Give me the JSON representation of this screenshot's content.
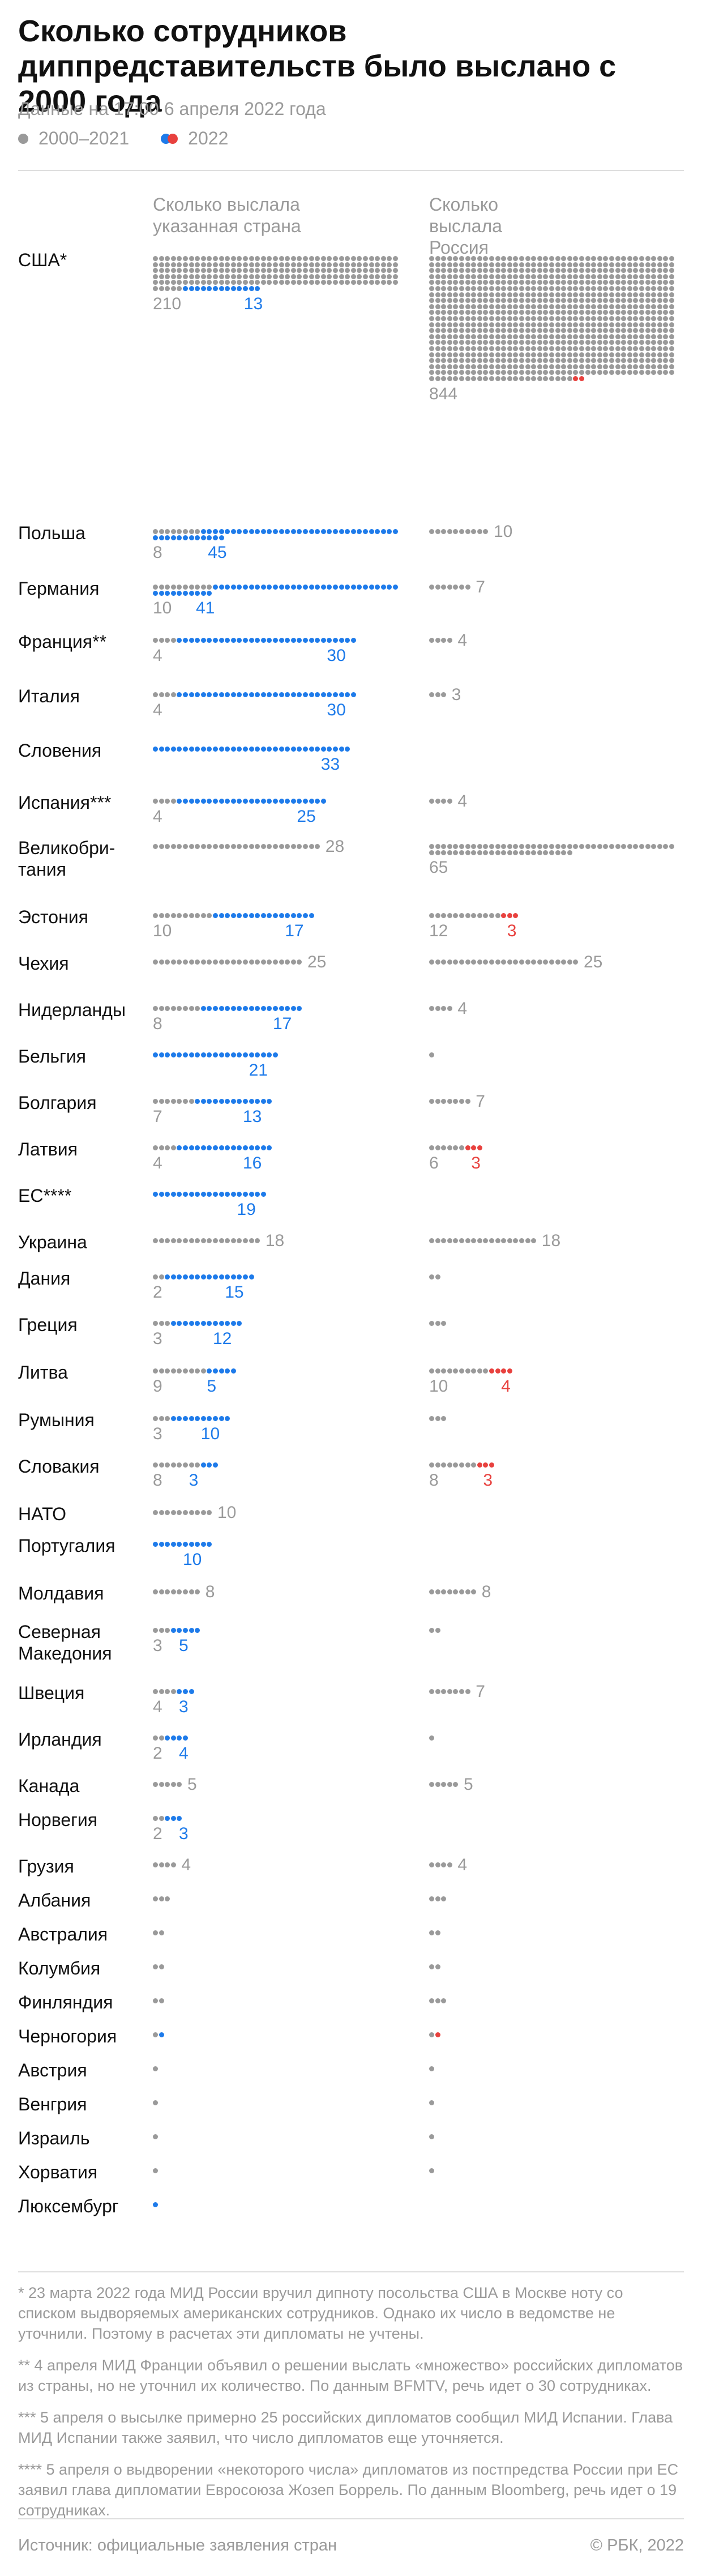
{
  "title": "Сколько сотрудников диппредставительств было выслано с 2000 года",
  "subtitle": "Данные на 17:00 6 апреля 2022 года",
  "legend": {
    "old": "2000–2021",
    "new": "2022"
  },
  "columns": {
    "left": "Сколько выслала указанная страна",
    "right": "Сколько выслала Россия"
  },
  "colors": {
    "old": "#9a9a9a",
    "new_country": "#1e7bea",
    "new_russia": "#e8413e"
  },
  "chart_data": {
    "type": "table",
    "series_meaning": {
      "old": "2000–2021",
      "new": "2022"
    },
    "rows": [
      {
        "country": "США*",
        "left_old": 210,
        "left_new": 13,
        "right_old": 844,
        "right_new": 2,
        "lbl": {
          "lo": "210",
          "ln": "13",
          "ro": "844",
          "rn": ""
        }
      },
      {
        "country": "Польша",
        "left_old": 8,
        "left_new": 45,
        "right_old": 10,
        "right_new": 0,
        "lbl": {
          "lo": "8",
          "ln": "45",
          "ro": "10",
          "rn": ""
        }
      },
      {
        "country": "Германия",
        "left_old": 10,
        "left_new": 41,
        "right_old": 7,
        "right_new": 0,
        "lbl": {
          "lo": "10",
          "ln": "41",
          "ro": "7",
          "rn": ""
        }
      },
      {
        "country": "Франция**",
        "left_old": 4,
        "left_new": 30,
        "right_old": 4,
        "right_new": 0,
        "lbl": {
          "lo": "4",
          "ln": "30",
          "ro": "4",
          "rn": ""
        }
      },
      {
        "country": "Италия",
        "left_old": 4,
        "left_new": 30,
        "right_old": 3,
        "right_new": 0,
        "lbl": {
          "lo": "4",
          "ln": "30",
          "ro": "3",
          "rn": ""
        }
      },
      {
        "country": "Словения",
        "left_old": 0,
        "left_new": 33,
        "right_old": 0,
        "right_new": 0,
        "lbl": {
          "lo": "",
          "ln": "33",
          "ro": "",
          "rn": ""
        }
      },
      {
        "country": "Испания***",
        "left_old": 4,
        "left_new": 25,
        "right_old": 4,
        "right_new": 0,
        "lbl": {
          "lo": "4",
          "ln": "25",
          "ro": "4",
          "rn": ""
        }
      },
      {
        "country": "Великобри-тания",
        "left_old": 28,
        "left_new": 0,
        "right_old": 65,
        "right_new": 0,
        "lbl": {
          "lo": "28",
          "ln": "",
          "ro": "65",
          "rn": ""
        }
      },
      {
        "country": "Эстония",
        "left_old": 10,
        "left_new": 17,
        "right_old": 12,
        "right_new": 3,
        "lbl": {
          "lo": "10",
          "ln": "17",
          "ro": "12",
          "rn": "3"
        }
      },
      {
        "country": "Чехия",
        "left_old": 25,
        "left_new": 0,
        "right_old": 25,
        "right_new": 0,
        "lbl": {
          "lo": "25",
          "ln": "",
          "ro": "25",
          "rn": ""
        }
      },
      {
        "country": "Нидерланды",
        "left_old": 8,
        "left_new": 17,
        "right_old": 4,
        "right_new": 0,
        "lbl": {
          "lo": "8",
          "ln": "17",
          "ro": "4",
          "rn": ""
        }
      },
      {
        "country": "Бельгия",
        "left_old": 0,
        "left_new": 21,
        "right_old": 1,
        "right_new": 0,
        "lbl": {
          "lo": "",
          "ln": "21",
          "ro": "",
          "rn": ""
        }
      },
      {
        "country": "Болгария",
        "left_old": 7,
        "left_new": 13,
        "right_old": 7,
        "right_new": 0,
        "lbl": {
          "lo": "7",
          "ln": "13",
          "ro": "7",
          "rn": ""
        }
      },
      {
        "country": "Латвия",
        "left_old": 4,
        "left_new": 16,
        "right_old": 6,
        "right_new": 3,
        "lbl": {
          "lo": "4",
          "ln": "16",
          "ro": "6",
          "rn": "3"
        }
      },
      {
        "country": "ЕС****",
        "left_old": 0,
        "left_new": 19,
        "right_old": 0,
        "right_new": 0,
        "lbl": {
          "lo": "",
          "ln": "19",
          "ro": "",
          "rn": ""
        }
      },
      {
        "country": "Украина",
        "left_old": 18,
        "left_new": 0,
        "right_old": 18,
        "right_new": 0,
        "lbl": {
          "lo": "18",
          "ln": "",
          "ro": "18",
          "rn": ""
        }
      },
      {
        "country": "Дания",
        "left_old": 2,
        "left_new": 15,
        "right_old": 2,
        "right_new": 0,
        "lbl": {
          "lo": "2",
          "ln": "15",
          "ro": "",
          "rn": ""
        }
      },
      {
        "country": "Греция",
        "left_old": 3,
        "left_new": 12,
        "right_old": 3,
        "right_new": 0,
        "lbl": {
          "lo": "3",
          "ln": "12",
          "ro": "",
          "rn": ""
        }
      },
      {
        "country": "Литва",
        "left_old": 9,
        "left_new": 5,
        "right_old": 10,
        "right_new": 4,
        "lbl": {
          "lo": "9",
          "ln": "5",
          "ro": "10",
          "rn": "4"
        }
      },
      {
        "country": "Румыния",
        "left_old": 3,
        "left_new": 10,
        "right_old": 3,
        "right_new": 0,
        "lbl": {
          "lo": "3",
          "ln": "10",
          "ro": "",
          "rn": ""
        }
      },
      {
        "country": "Словакия",
        "left_old": 8,
        "left_new": 3,
        "right_old": 8,
        "right_new": 3,
        "lbl": {
          "lo": "8",
          "ln": "3",
          "ro": "8",
          "rn": "3"
        }
      },
      {
        "country": "НАТО",
        "left_old": 10,
        "left_new": 0,
        "right_old": 0,
        "right_new": 0,
        "lbl": {
          "lo": "10",
          "ln": "",
          "ro": "",
          "rn": ""
        }
      },
      {
        "country": "Португалия",
        "left_old": 0,
        "left_new": 10,
        "right_old": 0,
        "right_new": 0,
        "lbl": {
          "lo": "",
          "ln": "10",
          "ro": "",
          "rn": ""
        }
      },
      {
        "country": "Молдавия",
        "left_old": 8,
        "left_new": 0,
        "right_old": 8,
        "right_new": 0,
        "lbl": {
          "lo": "8",
          "ln": "",
          "ro": "8",
          "rn": ""
        }
      },
      {
        "country": "Северная Македония",
        "left_old": 3,
        "left_new": 5,
        "right_old": 2,
        "right_new": 0,
        "lbl": {
          "lo": "3",
          "ln": "5",
          "ro": "",
          "rn": ""
        }
      },
      {
        "country": "Швеция",
        "left_old": 4,
        "left_new": 3,
        "right_old": 7,
        "right_new": 0,
        "lbl": {
          "lo": "4",
          "ln": "3",
          "ro": "7",
          "rn": ""
        }
      },
      {
        "country": "Ирландия",
        "left_old": 2,
        "left_new": 4,
        "right_old": 1,
        "right_new": 0,
        "lbl": {
          "lo": "2",
          "ln": "4",
          "ro": "",
          "rn": ""
        }
      },
      {
        "country": "Канада",
        "left_old": 5,
        "left_new": 0,
        "right_old": 5,
        "right_new": 0,
        "lbl": {
          "lo": "5",
          "ln": "",
          "ro": "5",
          "rn": ""
        }
      },
      {
        "country": "Норвегия",
        "left_old": 2,
        "left_new": 3,
        "right_old": 0,
        "right_new": 0,
        "lbl": {
          "lo": "2",
          "ln": "3",
          "ro": "",
          "rn": ""
        }
      },
      {
        "country": "Грузия",
        "left_old": 4,
        "left_new": 0,
        "right_old": 4,
        "right_new": 0,
        "lbl": {
          "lo": "4",
          "ln": "",
          "ro": "4",
          "rn": ""
        }
      },
      {
        "country": "Албания",
        "left_old": 3,
        "left_new": 0,
        "right_old": 3,
        "right_new": 0,
        "lbl": {
          "lo": "",
          "ln": "",
          "ro": "",
          "rn": ""
        }
      },
      {
        "country": "Австралия",
        "left_old": 2,
        "left_new": 0,
        "right_old": 2,
        "right_new": 0,
        "lbl": {
          "lo": "",
          "ln": "",
          "ro": "",
          "rn": ""
        }
      },
      {
        "country": "Колумбия",
        "left_old": 2,
        "left_new": 0,
        "right_old": 2,
        "right_new": 0,
        "lbl": {
          "lo": "",
          "ln": "",
          "ro": "",
          "rn": ""
        }
      },
      {
        "country": "Финляндия",
        "left_old": 2,
        "left_new": 0,
        "right_old": 3,
        "right_new": 0,
        "lbl": {
          "lo": "",
          "ln": "",
          "ro": "",
          "rn": ""
        }
      },
      {
        "country": "Черногория",
        "left_old": 1,
        "left_new": 1,
        "right_old": 1,
        "right_new": 1,
        "lbl": {
          "lo": "",
          "ln": "",
          "ro": "",
          "rn": ""
        }
      },
      {
        "country": "Австрия",
        "left_old": 1,
        "left_new": 0,
        "right_old": 1,
        "right_new": 0,
        "lbl": {
          "lo": "",
          "ln": "",
          "ro": "",
          "rn": ""
        }
      },
      {
        "country": "Венгрия",
        "left_old": 1,
        "left_new": 0,
        "right_old": 1,
        "right_new": 0,
        "lbl": {
          "lo": "",
          "ln": "",
          "ro": "",
          "rn": ""
        }
      },
      {
        "country": "Израиль",
        "left_old": 1,
        "left_new": 0,
        "right_old": 1,
        "right_new": 0,
        "lbl": {
          "lo": "",
          "ln": "",
          "ro": "",
          "rn": ""
        }
      },
      {
        "country": "Хорватия",
        "left_old": 1,
        "left_new": 0,
        "right_old": 1,
        "right_new": 0,
        "lbl": {
          "lo": "",
          "ln": "",
          "ro": "",
          "rn": ""
        }
      },
      {
        "country": "Люксембург",
        "left_old": 0,
        "left_new": 1,
        "right_old": 0,
        "right_new": 0,
        "lbl": {
          "lo": "",
          "ln": "",
          "ro": "",
          "rn": ""
        }
      }
    ]
  },
  "footnotes": [
    "* 23 марта 2022 года МИД России вручил дипноту посольства США в Москве ноту со списком выдворяемых американских сотрудников. Однако их число в ведомстве не уточнили. Поэтому в расчетах эти дипломаты не учтены.",
    "** 4 апреля МИД Франции объявил о решении выслать «множество» российских дипломатов из страны, но не уточнил их количество. По данным BFMTV, речь идет о 30 сотрудниках.",
    "*** 5 апреля о высылке примерно 25 российских дипломатов сообщил МИД Испании. Глава МИД Испании также заявил, что число дипломатов еще уточняется.",
    "**** 5 апреля о выдворении «некоторого числа» дипломатов из постпредства России при ЕС заявил глава дипломатии Евросоюза Жозеп Боррель. По данным Bloomberg, речь идет о 19 сотрудниках."
  ],
  "source": "Источник: официальные заявления стран",
  "copyright": "© РБК, 2022"
}
